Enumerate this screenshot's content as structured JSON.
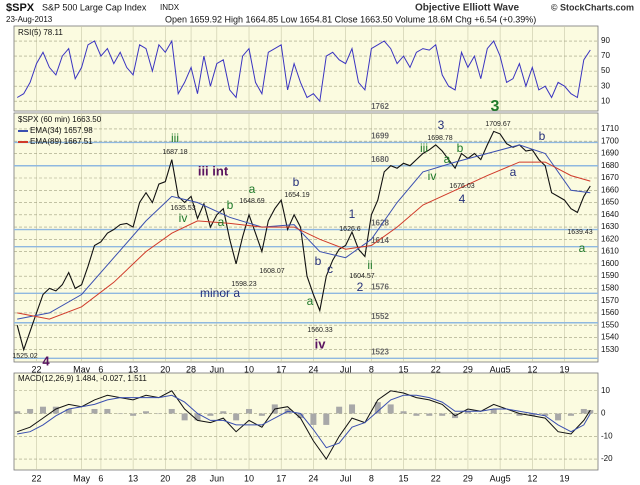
{
  "header": {
    "symbol": "$SPX",
    "name": "S&P 500 Large Cap Index",
    "exchange": "INDX",
    "source": "Objective Elliott Wave",
    "copyright": "© StockCharts.com",
    "date": "23-Aug-2013",
    "quote": "Open 1659.92  High 1664.85  Low 1654.81  Close 1663.50  Volume 18.6M  Chg +6.54 (+0.39%)"
  },
  "chart_data": [
    {
      "type": "line",
      "x": [
        -3,
        -2,
        -1,
        0,
        1,
        2,
        3,
        4,
        5,
        6,
        7,
        8,
        9,
        10,
        11,
        12,
        13,
        14,
        15,
        16,
        17,
        18,
        19,
        20,
        21,
        22,
        23,
        24,
        25,
        26,
        27,
        28,
        29,
        30,
        31,
        32,
        33,
        34,
        35,
        36,
        37,
        38,
        39,
        40,
        41,
        42,
        43,
        44,
        45,
        46,
        47,
        48,
        49,
        50,
        51,
        52,
        53,
        54,
        55,
        56,
        57,
        58,
        59,
        60,
        61,
        62,
        63,
        64,
        65,
        66,
        67,
        68,
        69,
        70,
        71,
        72,
        73,
        74,
        75,
        76,
        77,
        78,
        79,
        80,
        81,
        82,
        83,
        84,
        85,
        86
      ],
      "xlim": [
        -3.5,
        87.2
      ],
      "ylim": [
        -3,
        110
      ],
      "yticks": [
        10,
        30,
        50,
        70,
        90
      ],
      "series": [
        {
          "name": "RSI(5) 78.11",
          "color": "#3a34c0",
          "values": [
            15,
            20,
            35,
            60,
            75,
            55,
            45,
            70,
            80,
            40,
            55,
            85,
            90,
            70,
            80,
            60,
            75,
            55,
            45,
            85,
            80,
            50,
            85,
            75,
            90,
            20,
            35,
            55,
            20,
            70,
            30,
            60,
            65,
            25,
            15,
            70,
            80,
            35,
            20,
            75,
            80,
            85,
            25,
            60,
            35,
            15,
            20,
            10,
            70,
            75,
            65,
            60,
            80,
            35,
            25,
            80,
            85,
            90,
            80,
            60,
            70,
            55,
            75,
            80,
            78,
            85,
            45,
            30,
            25,
            75,
            55,
            70,
            40,
            80,
            90,
            70,
            35,
            40,
            60,
            30,
            55,
            25,
            30,
            15,
            35,
            30,
            20,
            15,
            65,
            78.11
          ]
        }
      ]
    },
    {
      "type": "line",
      "x": [
        -3,
        -2,
        -1,
        0,
        1,
        2,
        3,
        4,
        5,
        6,
        7,
        8,
        9,
        10,
        11,
        12,
        13,
        14,
        15,
        16,
        17,
        18,
        19,
        20,
        21,
        22,
        23,
        24,
        25,
        26,
        27,
        28,
        29,
        30,
        31,
        32,
        33,
        34,
        35,
        36,
        37,
        38,
        39,
        40,
        41,
        42,
        43,
        44,
        45,
        46,
        47,
        48,
        49,
        50,
        51,
        52,
        53,
        54,
        55,
        56,
        57,
        58,
        59,
        60,
        61,
        62,
        63,
        64,
        65,
        66,
        67,
        68,
        69,
        70,
        71,
        72,
        73,
        74,
        75,
        76,
        77,
        78,
        79,
        80,
        81,
        82,
        83,
        84,
        85,
        86
      ],
      "xlim": [
        -3.5,
        87.2
      ],
      "ylim": [
        1520,
        1723
      ],
      "xticks": [
        {
          "value": 0,
          "label": "22"
        },
        {
          "value": 7,
          "label": "May"
        },
        {
          "value": 10,
          "label": "6"
        },
        {
          "value": 15,
          "label": "13"
        },
        {
          "value": 20,
          "label": "20"
        },
        {
          "value": 24,
          "label": "28"
        },
        {
          "value": 28,
          "label": "Jun"
        },
        {
          "value": 33,
          "label": "10"
        },
        {
          "value": 38,
          "label": "17"
        },
        {
          "value": 43,
          "label": "24"
        },
        {
          "value": 48,
          "label": "Jul"
        },
        {
          "value": 52,
          "label": "8"
        },
        {
          "value": 57,
          "label": "15"
        },
        {
          "value": 62,
          "label": "22"
        },
        {
          "value": 67,
          "label": "29"
        },
        {
          "value": 72,
          "label": "Aug5"
        },
        {
          "value": 77,
          "label": "12"
        },
        {
          "value": 82,
          "label": "19"
        }
      ],
      "yticks": [
        1530,
        1540,
        1550,
        1560,
        1570,
        1580,
        1590,
        1600,
        1610,
        1620,
        1630,
        1640,
        1650,
        1660,
        1670,
        1680,
        1690,
        1700,
        1710
      ],
      "levels": [
        1762,
        1699,
        1680,
        1628,
        1614,
        1576,
        1552,
        1523
      ],
      "series": [
        {
          "name": "$SPX (60 min) 1663.50",
          "color": "#111111",
          "values": [
            1550,
            1530,
            1545,
            1560,
            1575,
            1580,
            1578,
            1583,
            1593,
            1580,
            1583,
            1598,
            1615,
            1618,
            1625,
            1628,
            1632,
            1633,
            1630,
            1650,
            1658,
            1650,
            1665,
            1667,
            1685,
            1655,
            1650,
            1655,
            1637,
            1649,
            1630,
            1640,
            1645,
            1620,
            1600,
            1622,
            1640,
            1625,
            1610,
            1635,
            1645,
            1652,
            1628,
            1640,
            1630,
            1590,
            1575,
            1562,
            1590,
            1603,
            1612,
            1615,
            1626,
            1612,
            1606,
            1640,
            1652,
            1675,
            1680,
            1678,
            1682,
            1680,
            1685,
            1690,
            1693,
            1697,
            1692,
            1685,
            1678,
            1690,
            1686,
            1690,
            1685,
            1697,
            1708,
            1706,
            1698,
            1695,
            1697,
            1692,
            1693,
            1685,
            1680,
            1658,
            1655,
            1652,
            1645,
            1642,
            1655,
            1663.5
          ]
        },
        {
          "name": "EMA(34) 1657.98",
          "color": "#3a4fb0",
          "x": [
            -3,
            2,
            7,
            12,
            17,
            21,
            25,
            30,
            35,
            40,
            44,
            48,
            52,
            56,
            60,
            65,
            70,
            75,
            79,
            83,
            86
          ],
          "values": [
            1555,
            1560,
            1575,
            1605,
            1635,
            1655,
            1650,
            1638,
            1630,
            1632,
            1610,
            1605,
            1620,
            1650,
            1675,
            1683,
            1690,
            1697,
            1690,
            1660,
            1657.98
          ]
        },
        {
          "name": "EMA(89) 1667.51",
          "color": "#d03a2a",
          "x": [
            -3,
            2,
            7,
            12,
            17,
            21,
            25,
            30,
            35,
            40,
            44,
            48,
            52,
            56,
            60,
            65,
            70,
            75,
            79,
            83,
            86
          ],
          "values": [
            1560,
            1555,
            1565,
            1585,
            1610,
            1625,
            1635,
            1633,
            1630,
            1630,
            1620,
            1612,
            1615,
            1630,
            1648,
            1660,
            1672,
            1683,
            1683,
            1672,
            1667.51
          ]
        }
      ],
      "annotations": [
        "iii",
        "1687.18",
        "iii int",
        "iv",
        "1635.53",
        "b",
        "1648.69",
        "a",
        "a",
        "1598.23",
        "1608.07",
        "b",
        "1654.19",
        "minor a",
        "b",
        "a",
        "1560.33",
        "iv",
        "1",
        "1626.6",
        "ii",
        "1604.57",
        "2",
        "3",
        "1698.78",
        "iii",
        "iv",
        "b",
        "a",
        "1676.03",
        "4",
        "1709.67",
        "b",
        "a",
        "1639.43",
        "a",
        "3",
        "1525.02",
        "4",
        "c"
      ]
    },
    {
      "type": "line",
      "title": "MACD(12,26,9) 1.484, -0.027, 1.511",
      "x": [
        -3,
        -1,
        1,
        3,
        5,
        7,
        9,
        11,
        13,
        15,
        17,
        19,
        21,
        23,
        25,
        27,
        29,
        31,
        33,
        35,
        37,
        39,
        41,
        43,
        45,
        47,
        49,
        51,
        53,
        55,
        57,
        59,
        61,
        63,
        65,
        67,
        69,
        71,
        73,
        75,
        77,
        79,
        81,
        83,
        85,
        86
      ],
      "xlim": [
        -3.5,
        87.2
      ],
      "ylim": [
        -24.8,
        17.8
      ],
      "xticks": [
        {
          "value": 0,
          "label": "22"
        },
        {
          "value": 7,
          "label": "May"
        },
        {
          "value": 10,
          "label": "6"
        },
        {
          "value": 15,
          "label": "13"
        },
        {
          "value": 20,
          "label": "20"
        },
        {
          "value": 24,
          "label": "28"
        },
        {
          "value": 28,
          "label": "Jun"
        },
        {
          "value": 33,
          "label": "10"
        },
        {
          "value": 38,
          "label": "17"
        },
        {
          "value": 43,
          "label": "24"
        },
        {
          "value": 48,
          "label": "Jul"
        },
        {
          "value": 52,
          "label": "8"
        },
        {
          "value": 57,
          "label": "15"
        },
        {
          "value": 62,
          "label": "22"
        },
        {
          "value": 67,
          "label": "29"
        },
        {
          "value": 72,
          "label": "Aug5"
        },
        {
          "value": 77,
          "label": "12"
        },
        {
          "value": 82,
          "label": "19"
        }
      ],
      "yticks": [
        -20,
        -10,
        0,
        10
      ],
      "series": [
        {
          "type": "bar",
          "color": "#a8a8a8",
          "values": [
            1,
            2,
            3,
            3,
            2,
            0,
            2,
            2,
            0,
            -1,
            1,
            0,
            2,
            -3,
            -3,
            -1,
            1,
            -3,
            2,
            -1,
            4,
            2,
            -2,
            -5,
            -5,
            3,
            4,
            0,
            5,
            4,
            1,
            -1,
            -1,
            -1,
            -2,
            1,
            0,
            2,
            0,
            -1,
            -1,
            -1,
            -3,
            -1,
            2,
            1.511
          ]
        },
        {
          "color": "#111111",
          "values": [
            -8,
            -6,
            -2,
            2,
            4,
            3,
            6,
            8,
            7,
            6,
            8,
            7,
            10,
            2,
            -3,
            -4,
            -2,
            -8,
            -3,
            -6,
            2,
            3,
            -2,
            -12,
            -20,
            -10,
            -2,
            -4,
            6,
            10,
            9,
            7,
            6,
            4,
            -1,
            2,
            1,
            4,
            2,
            0,
            -1,
            -2,
            -8,
            -9,
            -3,
            1.484
          ]
        },
        {
          "color": "#3a4fb0",
          "values": [
            -9,
            -8,
            -5,
            -1,
            2,
            3,
            4,
            6,
            7,
            7,
            7,
            7,
            8,
            5,
            0,
            -3,
            -3,
            -5,
            -5,
            -5,
            -2,
            1,
            0,
            -7,
            -15,
            -13,
            -6,
            -4,
            1,
            6,
            8,
            8,
            7,
            5,
            1,
            1,
            1,
            2,
            2,
            1,
            0,
            -1,
            -5,
            -8,
            -5,
            -0.027
          ]
        }
      ]
    }
  ]
}
